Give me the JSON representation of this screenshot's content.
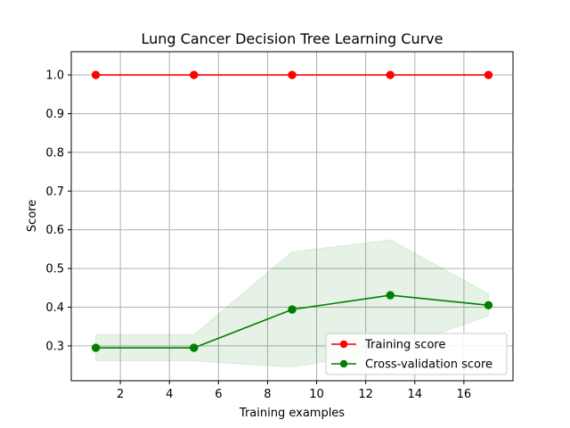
{
  "chart_data": {
    "type": "line",
    "title": "Lung Cancer Decision Tree Learning Curve",
    "xlabel": "Training examples",
    "ylabel": "Score",
    "xlim": [
      0,
      18
    ],
    "ylim": [
      0.21,
      1.06
    ],
    "xticks": [
      2,
      4,
      6,
      8,
      10,
      12,
      14,
      16
    ],
    "yticks": [
      0.3,
      0.4,
      0.5,
      0.6,
      0.7,
      0.8,
      0.9,
      1.0
    ],
    "x": [
      1,
      5,
      9,
      13,
      17
    ],
    "grid": true,
    "legend_position": "lower-right",
    "series": [
      {
        "name": "Training score",
        "color": "#ff0000",
        "values": [
          1.0,
          1.0,
          1.0,
          1.0,
          1.0
        ],
        "band_lower": [
          1.0,
          1.0,
          1.0,
          1.0,
          1.0
        ],
        "band_upper": [
          1.0,
          1.0,
          1.0,
          1.0,
          1.0
        ]
      },
      {
        "name": "Cross-validation score",
        "color": "#008000",
        "values": [
          0.295,
          0.295,
          0.394,
          0.431,
          0.405
        ],
        "band_lower": [
          0.261,
          0.261,
          0.245,
          0.288,
          0.378
        ],
        "band_upper": [
          0.329,
          0.329,
          0.543,
          0.574,
          0.435
        ]
      }
    ]
  }
}
